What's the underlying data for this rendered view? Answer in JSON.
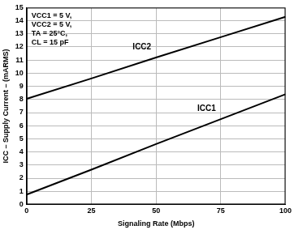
{
  "chart_data": {
    "type": "line",
    "x_label": "Signaling Rate (Mbps)",
    "y_label": "ICC – Supply Current – (mARMS)",
    "annotations": [
      "VCC1 = 5 V,",
      "VCC2 = 5 V,",
      "TA = 25°C,",
      "CL = 15 pF"
    ],
    "x": [
      0,
      25,
      50,
      75,
      100
    ],
    "series": [
      {
        "name": "ICC2",
        "color": "#000000",
        "values": [
          8.05,
          9.6,
          11.2,
          12.75,
          14.3
        ]
      },
      {
        "name": "ICC1",
        "color": "#000000",
        "values": [
          0.75,
          2.65,
          4.6,
          6.5,
          8.4
        ]
      }
    ],
    "xlim": [
      0,
      100
    ],
    "xticks": [
      0,
      25,
      50,
      75,
      100
    ],
    "ylim": [
      0,
      15
    ],
    "yticks": [
      0,
      1,
      2,
      3,
      4,
      5,
      6,
      7,
      8,
      9,
      10,
      11,
      12,
      13,
      14,
      15
    ],
    "grid": true
  }
}
